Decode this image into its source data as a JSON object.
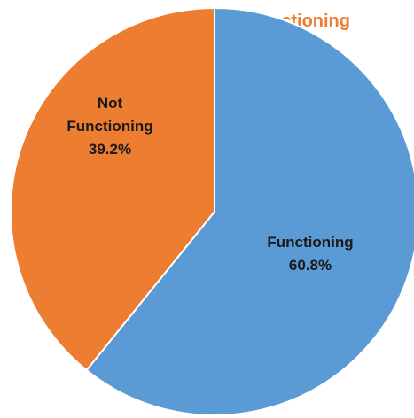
{
  "chart_data": {
    "type": "pie",
    "title": "…ly Functioning",
    "title_color": "#ED7D31",
    "slices": [
      {
        "label": "Functioning",
        "value": 60.8,
        "value_label": "60.8%",
        "color": "#5B9BD5"
      },
      {
        "label": "Not Functioning",
        "value": 39.2,
        "value_label": "39.2%",
        "color": "#ED7D31"
      }
    ],
    "start_angle": "12 o'clock",
    "direction": "clockwise",
    "slice_border_color": "#ffffff",
    "legend": "none"
  }
}
